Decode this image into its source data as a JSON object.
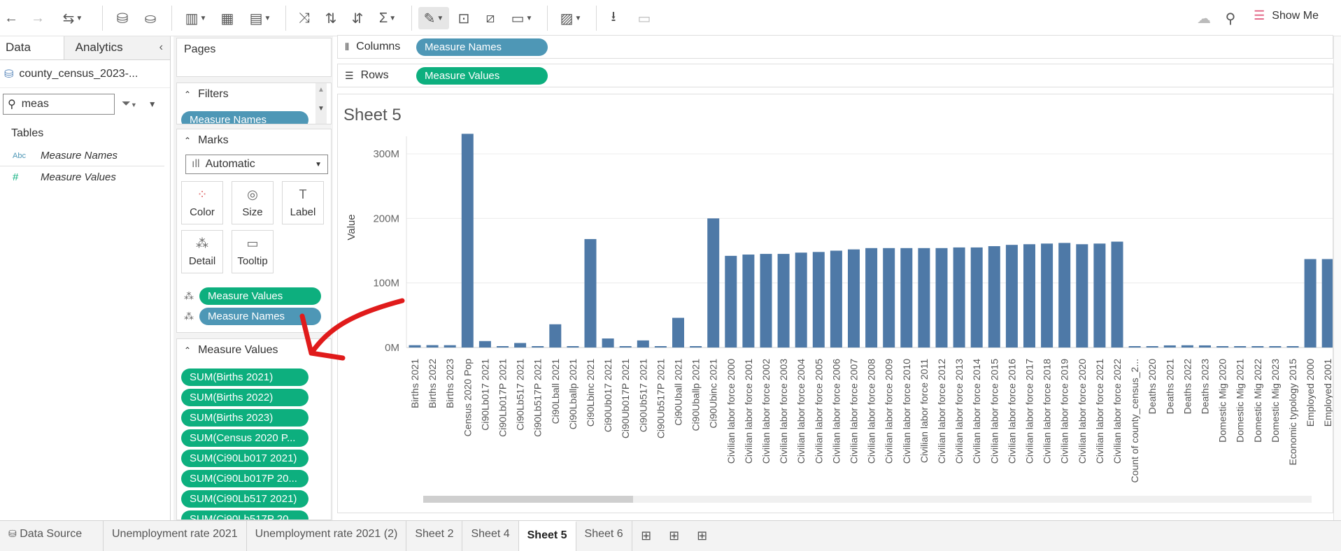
{
  "toolbar": {
    "show_me_label": "Show Me"
  },
  "data_pane": {
    "tabs": [
      "Data",
      "Analytics"
    ],
    "datasource": "county_census_2023-...",
    "search_value": "meas",
    "tables_label": "Tables",
    "fields": [
      {
        "type_label": "Abc",
        "name": "Measure Names"
      },
      {
        "type_label": "#",
        "name": "Measure Values"
      }
    ]
  },
  "cards": {
    "pages_label": "Pages",
    "filters_label": "Filters",
    "filter_pill": "Measure Names",
    "marks_label": "Marks",
    "mark_type": "Automatic",
    "mark_buttons": [
      "Color",
      "Size",
      "Label",
      "Detail",
      "Tooltip"
    ],
    "marks_pills": [
      "Measure Values",
      "Measure Names"
    ],
    "measure_values_label": "Measure Values",
    "measure_values_pills": [
      "SUM(Births 2021)",
      "SUM(Births 2022)",
      "SUM(Births 2023)",
      "SUM(Census 2020 P...",
      "SUM(Ci90Lb017 2021)",
      "SUM(Ci90Lb017P 20...",
      "SUM(Ci90Lb517 2021)",
      "SUM(Ci90Lb517P 20..."
    ]
  },
  "shelves": {
    "columns_label": "Columns",
    "columns_pill": "Measure Names",
    "rows_label": "Rows",
    "rows_pill": "Measure Values"
  },
  "sheet_title": "Sheet 5",
  "chart_data": {
    "type": "bar",
    "ylabel": "Value",
    "xlabel": "",
    "ylim": [
      0,
      330000000
    ],
    "yticks": [
      "0M",
      "100M",
      "200M",
      "300M"
    ],
    "categories": [
      "Births 2021",
      "Births 2022",
      "Births 2023",
      "Census 2020 Pop",
      "Ci90Lb017 2021",
      "Ci90Lb017P 2021",
      "Ci90Lb517 2021",
      "Ci90Lb517P 2021",
      "Ci90Lball 2021",
      "Ci90Lballp 2021",
      "Ci90Lbinc 2021",
      "Ci90Ub017 2021",
      "Ci90Ub017P 2021",
      "Ci90Ub517 2021",
      "Ci90Ub517P 2021",
      "Ci90Uball 2021",
      "Ci90Uballp 2021",
      "Ci90Ubinc 2021",
      "Civilian labor force 2000",
      "Civilian labor force 2001",
      "Civilian labor force 2002",
      "Civilian labor force 2003",
      "Civilian labor force 2004",
      "Civilian labor force 2005",
      "Civilian labor force 2006",
      "Civilian labor force 2007",
      "Civilian labor force 2008",
      "Civilian labor force 2009",
      "Civilian labor force 2010",
      "Civilian labor force 2011",
      "Civilian labor force 2012",
      "Civilian labor force 2013",
      "Civilian labor force 2014",
      "Civilian labor force 2015",
      "Civilian labor force 2016",
      "Civilian labor force 2017",
      "Civilian labor force 2018",
      "Civilian labor force 2019",
      "Civilian labor force 2020",
      "Civilian labor force 2021",
      "Civilian labor force 2022",
      "Count of county_census_2...",
      "Deaths 2020",
      "Deaths 2021",
      "Deaths 2022",
      "Deaths 2023",
      "Domestic Mig 2020",
      "Domestic Mig 2021",
      "Domestic Mig 2022",
      "Domestic Mig 2023",
      "Economic typology 2015",
      "Employed 2000",
      "Employed 2001"
    ],
    "values": [
      3600000,
      3700000,
      3600000,
      331000000,
      10000000,
      600000,
      7000000,
      600000,
      36000000,
      600000,
      168000000,
      14000000,
      600000,
      11000000,
      600000,
      46000000,
      600000,
      200000000,
      142000000,
      144000000,
      145000000,
      145000000,
      147000000,
      148000000,
      150000000,
      152000000,
      154000000,
      154000000,
      154000000,
      154000000,
      154000000,
      155000000,
      155000000,
      157000000,
      159000000,
      160000000,
      161000000,
      162000000,
      160000000,
      161000000,
      164000000,
      600000,
      1000000,
      3300000,
      3500000,
      3300000,
      600000,
      600000,
      600000,
      600000,
      600000,
      137000000,
      137000000
    ]
  },
  "bottom_tabs": {
    "data_source": "Data Source",
    "sheets": [
      "Unemployment rate 2021",
      "Unemployment rate 2021 (2)",
      "Sheet 2",
      "Sheet 4",
      "Sheet 5",
      "Sheet 6"
    ],
    "active": "Sheet 5"
  }
}
